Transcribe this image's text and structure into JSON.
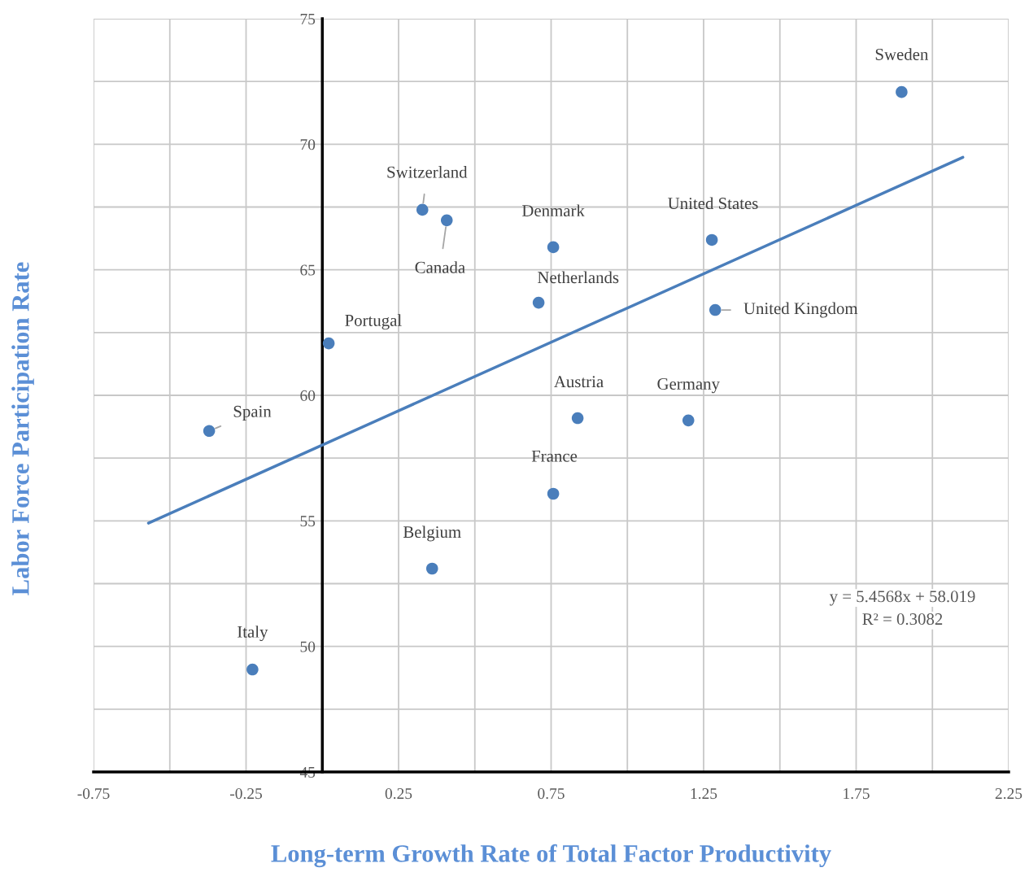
{
  "chart_data": {
    "type": "scatter",
    "xlabel": "Long-term Growth Rate of Total Factor Productivity",
    "ylabel": "Labor Force Participation Rate",
    "series": [
      {
        "color": "#4a7ebb",
        "marker": "circle",
        "x": [
          1.899,
          0.328,
          0.408,
          0.757,
          1.277,
          0.709,
          1.288,
          0.021,
          -0.371,
          0.837,
          1.2,
          0.757,
          0.36,
          -0.229
        ],
        "values": [
          72.08,
          67.39,
          66.97,
          65.9,
          66.19,
          63.69,
          63.4,
          62.07,
          58.58,
          59.09,
          59.0,
          56.08,
          53.1,
          49.08
        ]
      },
      {
        "type": "line",
        "color": "#4a7ebb",
        "x": [
          -0.57,
          2.1
        ],
        "values": [
          54.91,
          69.48
        ]
      }
    ],
    "annotations": [
      {
        "text": "Sweden",
        "x": 1.899,
        "y": 72.08
      },
      {
        "text": "Switzerland",
        "x": 0.328,
        "y": 67.39
      },
      {
        "text": "Canada",
        "x": 0.408,
        "y": 66.97
      },
      {
        "text": "Denmark",
        "x": 0.757,
        "y": 65.9
      },
      {
        "text": "United States",
        "x": 1.277,
        "y": 66.19
      },
      {
        "text": "Netherlands",
        "x": 0.709,
        "y": 63.69
      },
      {
        "text": "United Kingdom",
        "x": 1.288,
        "y": 63.4
      },
      {
        "text": "Portugal",
        "x": 0.021,
        "y": 62.07
      },
      {
        "text": "Spain",
        "x": -0.371,
        "y": 58.58
      },
      {
        "text": "Austria",
        "x": 0.837,
        "y": 59.09
      },
      {
        "text": "Germany",
        "x": 1.2,
        "y": 59.0
      },
      {
        "text": "France",
        "x": 0.757,
        "y": 56.08
      },
      {
        "text": "Belgium",
        "x": 0.36,
        "y": 53.1
      },
      {
        "text": "Italy",
        "x": -0.229,
        "y": 49.08
      },
      "y = 5.4568x + 58.019",
      "R² = 0.3082"
    ],
    "xlim": [
      -0.75,
      2.25
    ],
    "xticks": [
      -0.75,
      {
        "value": -0.5,
        "label": null
      },
      -0.25,
      {
        "value": 0,
        "label": null
      },
      0.25,
      {
        "value": 0.5,
        "label": null
      },
      0.75,
      {
        "value": 1,
        "label": null
      },
      1.25,
      {
        "value": 1.5,
        "label": null
      },
      1.75,
      {
        "value": 2,
        "label": null
      },
      2.25
    ],
    "ylim": [
      45,
      75
    ],
    "yticks": [
      45,
      {
        "value": 47.5,
        "label": null
      },
      50,
      {
        "value": 52.5,
        "label": null
      },
      55,
      {
        "value": 57.5,
        "label": null
      },
      60,
      {
        "value": 62.5,
        "label": null
      },
      65,
      {
        "value": 67.5,
        "label": null
      },
      70,
      {
        "value": 72.5,
        "label": null
      },
      75
    ],
    "grid": true,
    "line_style": "solid"
  }
}
